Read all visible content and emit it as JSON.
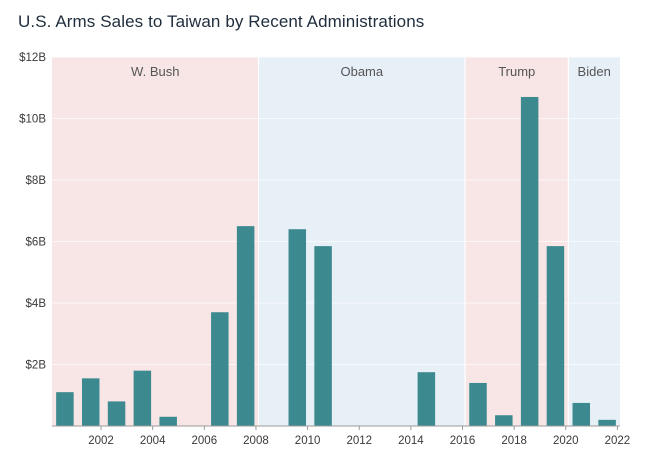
{
  "chart_data": {
    "type": "bar",
    "title": "U.S. Arms Sales to Taiwan by Recent Administrations",
    "xlabel": "",
    "ylabel": "",
    "ylim": [
      0,
      12
    ],
    "y_ticks": [
      {
        "value": 12,
        "label": "$12B"
      },
      {
        "value": 10,
        "label": "$10B"
      },
      {
        "value": 8,
        "label": "$8B"
      },
      {
        "value": 6,
        "label": "$6B"
      },
      {
        "value": 4,
        "label": "$4B"
      },
      {
        "value": 2,
        "label": "$2B"
      }
    ],
    "x_ticks": [
      "2002",
      "2004",
      "2006",
      "2008",
      "2010",
      "2012",
      "2014",
      "2016",
      "2018",
      "2020",
      "2022"
    ],
    "categories": [
      2001,
      2002,
      2003,
      2004,
      2005,
      2006,
      2007,
      2008,
      2009,
      2010,
      2011,
      2012,
      2013,
      2014,
      2015,
      2016,
      2017,
      2018,
      2019,
      2020,
      2021,
      2022
    ],
    "values": [
      1.1,
      1.55,
      0.8,
      1.8,
      0.3,
      0,
      3.7,
      6.5,
      0,
      6.4,
      5.85,
      0,
      0,
      0,
      1.75,
      0,
      1.4,
      0.35,
      10.7,
      5.85,
      0.75,
      0.2
    ],
    "bar_color": "#3c8a8f",
    "administrations": [
      {
        "name": "W. Bush",
        "start": 2001,
        "end": 2008,
        "color": "#f8e6e6"
      },
      {
        "name": "Obama",
        "start": 2009,
        "end": 2016,
        "color": "#e7eff7"
      },
      {
        "name": "Trump",
        "start": 2017,
        "end": 2020,
        "color": "#f8e6e6"
      },
      {
        "name": "Biden",
        "start": 2021,
        "end": 2022,
        "color": "#e7eff7"
      }
    ]
  }
}
